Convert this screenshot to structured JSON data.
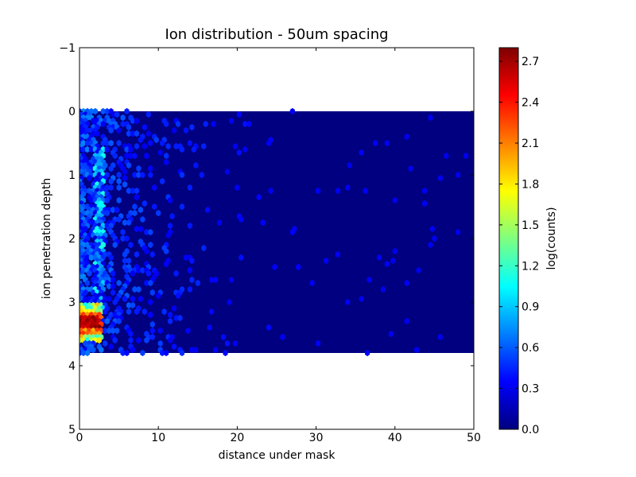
{
  "chart_data": {
    "type": "heatmap",
    "subtype": "hexbin",
    "title": "Ion distribution - 50um spacing",
    "xlabel": "distance under mask",
    "ylabel": "ion penetration depth",
    "xlim": [
      0,
      50
    ],
    "ylim": [
      -1,
      5
    ],
    "y_inverted": true,
    "x_ticks": [
      "0",
      "10",
      "20",
      "30",
      "40",
      "50"
    ],
    "y_ticks": [
      "−1",
      "0",
      "1",
      "2",
      "3",
      "4",
      "5"
    ],
    "data_extent": {
      "x": [
        0,
        50
      ],
      "y": [
        0,
        3.8
      ]
    },
    "colorbar": {
      "label": "log(counts)",
      "colormap": "jet",
      "range": [
        0,
        2.8
      ],
      "ticks": [
        "0.0",
        "0.3",
        "0.6",
        "0.9",
        "1.2",
        "1.5",
        "1.8",
        "2.1",
        "2.4",
        "2.7"
      ]
    },
    "grid": false,
    "hotspot": {
      "x_range": [
        0,
        3
      ],
      "depth_range": [
        3.2,
        3.5
      ],
      "peak_log_counts": 2.8
    },
    "background_log_counts": 0.0
  }
}
